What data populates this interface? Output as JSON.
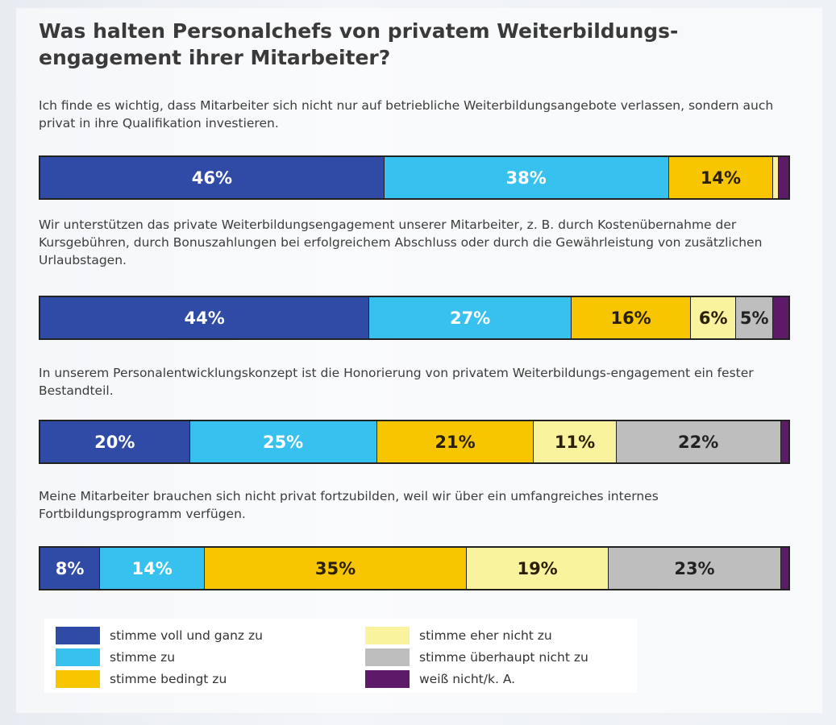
{
  "chart_data": {
    "type": "bar",
    "orientation": "horizontal-stacked-100",
    "title": "Was halten Personalchefs von privatem Weiterbildungs-engagement ihrer Mitarbeiter?",
    "categories": [
      "Ich finde es wichtig, dass Mitarbeiter sich nicht nur auf betriebliche Weiterbildungsangebote verlassen, sondern auch privat in ihre Qualifikation investieren.",
      "Wir unterstützen das private Weiterbildungsengagement unserer Mitarbeiter, z. B. durch Kostenübernahme der Kursgebühren, durch Bonuszahlungen bei erfolgreichem Abschluss oder durch die Gewährleistung von zusätzlichen Urlaubstagen.",
      "In unserem Personalentwicklungskonzept ist die Honorierung von privatem Weiterbildungs-engagement ein fester Bestandteil.",
      "Meine Mitarbeiter brauchen sich nicht privat fortzubilden, weil wir über ein umfangreiches internes Fortbildungsprogramm verfügen."
    ],
    "series": [
      {
        "name": "stimme voll und ganz zu",
        "color": "#2f4ba6",
        "text": "#ffffff",
        "values": [
          46,
          44,
          20,
          8
        ],
        "labels": [
          "46%",
          "44%",
          "20%",
          "8%"
        ]
      },
      {
        "name": "stimme zu",
        "color": "#37c1ef",
        "text": "#ffffff",
        "values": [
          38,
          27,
          25,
          14
        ],
        "labels": [
          "38%",
          "27%",
          "25%",
          "14%"
        ]
      },
      {
        "name": "stimme bedingt zu",
        "color": "#f8c600",
        "text": "#2a2008",
        "values": [
          14,
          16,
          21,
          35
        ],
        "labels": [
          "14%",
          "16%",
          "21%",
          "35%"
        ]
      },
      {
        "name": "stimme eher nicht zu",
        "color": "#faf39e",
        "text": "#2a2008",
        "values": [
          0.7,
          6,
          11,
          19
        ],
        "labels": [
          "",
          "6%",
          "11%",
          "19%"
        ]
      },
      {
        "name": "stimme überhaupt nicht zu",
        "color": "#bebebe",
        "text": "#222222",
        "values": [
          0,
          5,
          22,
          23
        ],
        "labels": [
          "",
          "5%",
          "22%",
          "23%"
        ]
      },
      {
        "name": "weiß nicht/k. A.",
        "color": "#5d1a69",
        "text": "#ffffff",
        "values": [
          1.3,
          2,
          1,
          1
        ],
        "labels": [
          "",
          "",
          "",
          ""
        ]
      }
    ],
    "legend_position": "bottom",
    "grid": false
  }
}
